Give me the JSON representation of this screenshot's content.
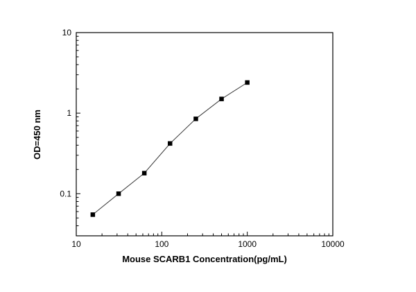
{
  "chart_data": {
    "type": "scatter",
    "title": "",
    "xlabel": "Mouse SCARB1 Concentration(pg/mL)",
    "ylabel": "OD=450 nm",
    "x_scale": "log",
    "y_scale": "log",
    "xlim": [
      10,
      10000
    ],
    "ylim": [
      0.03,
      10
    ],
    "x_major_ticks": [
      10,
      100,
      1000,
      10000
    ],
    "y_major_ticks": [
      0.1,
      1,
      10
    ],
    "series": [
      {
        "name": "standard-curve",
        "marker": "filled-square",
        "marker_color": "#000000",
        "line_color": "#3a3a3a",
        "x": [
          15.6,
          31.25,
          62.5,
          125,
          250,
          500,
          1000
        ],
        "y": [
          0.055,
          0.1,
          0.18,
          0.42,
          0.85,
          1.5,
          2.4
        ]
      }
    ],
    "grid": false,
    "legend": "none",
    "background_color": "#ffffff",
    "frame_color": "#000000"
  }
}
